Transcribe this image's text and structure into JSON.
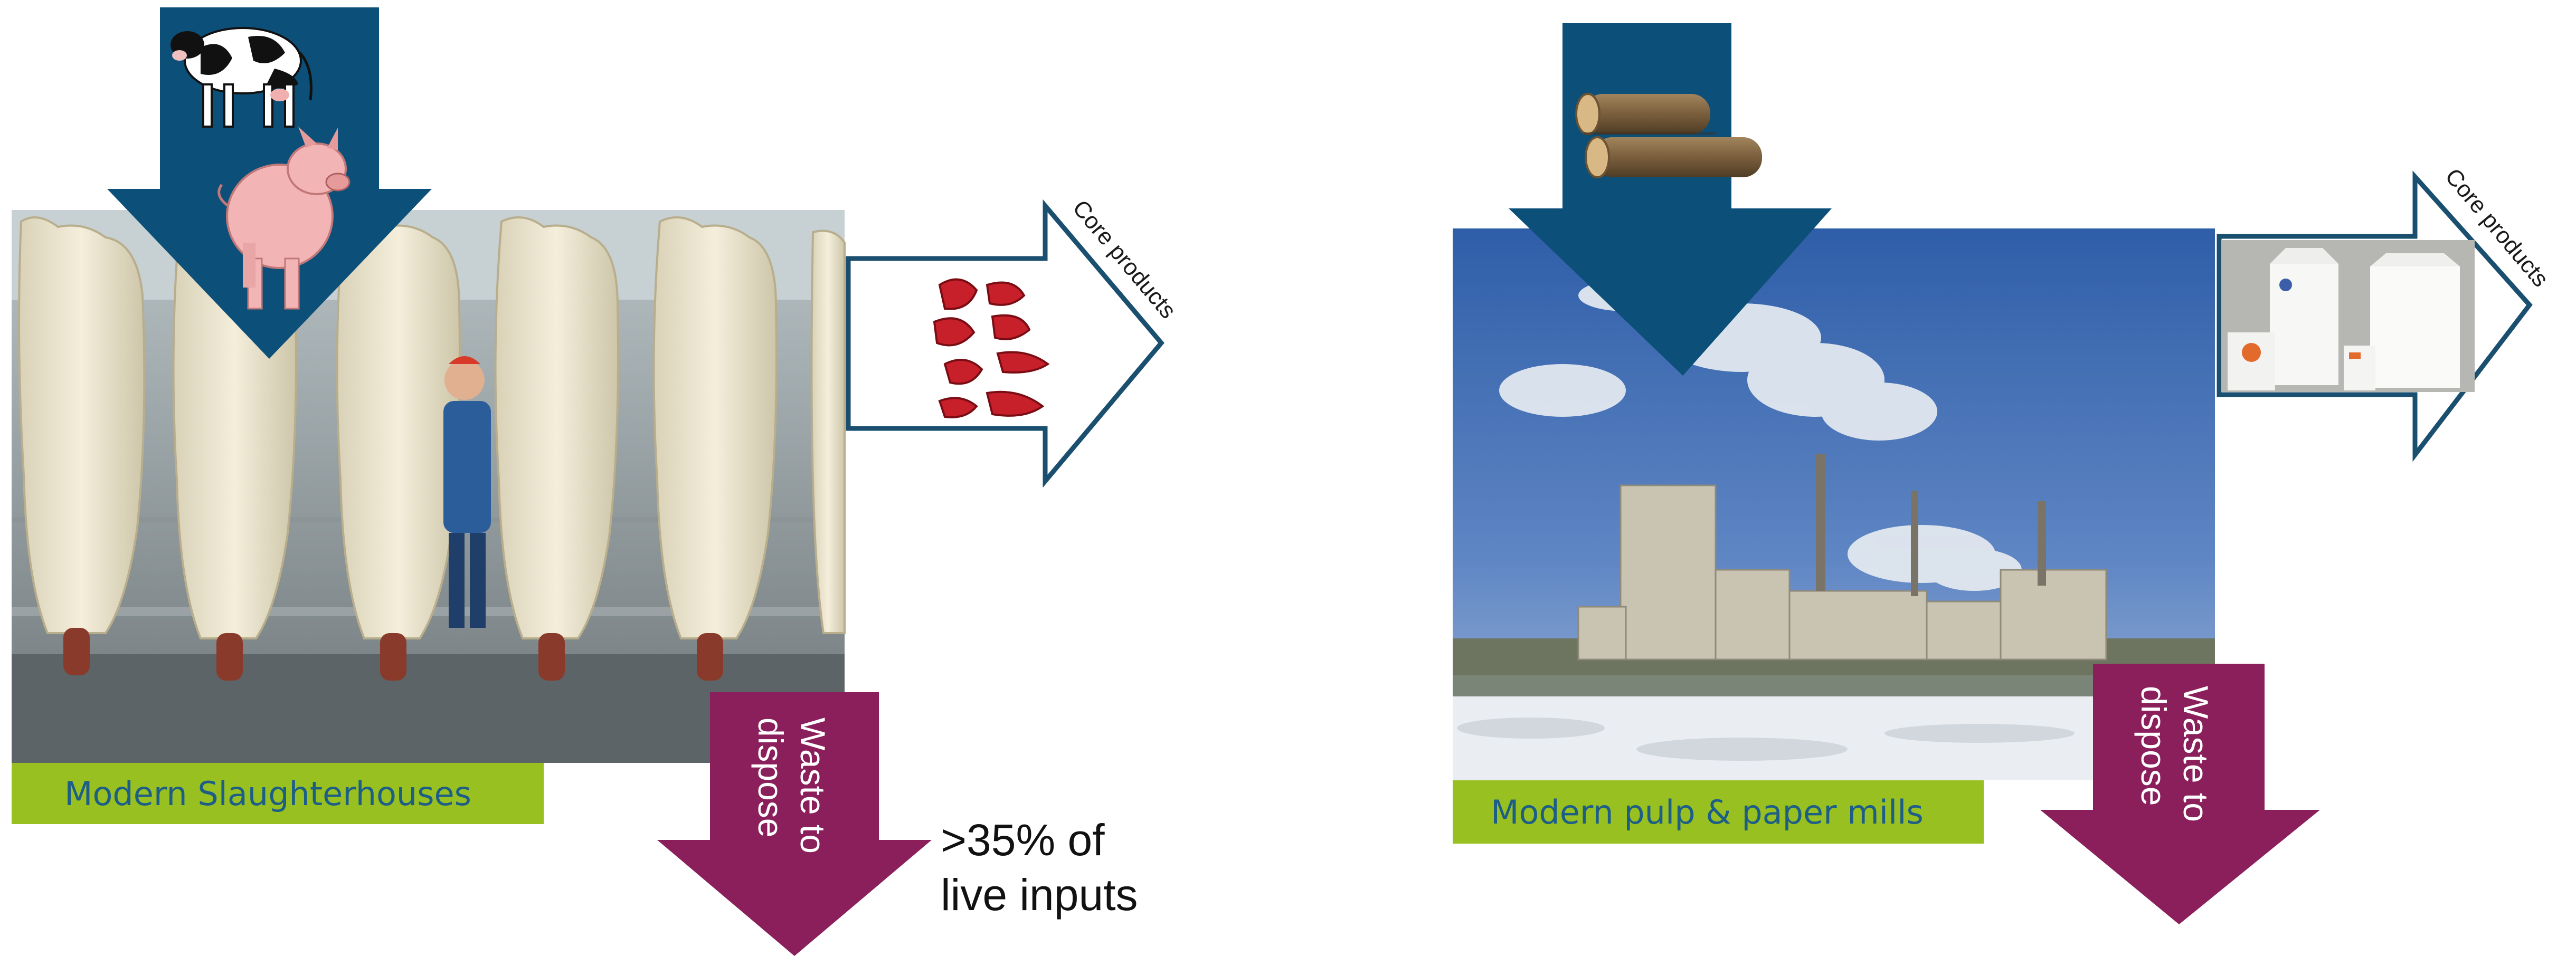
{
  "panels": {
    "slaughterhouse": {
      "label": "Modern Slaughterhouses",
      "core_products": "Core products",
      "waste": "Waste to\ndispose",
      "waste_note": ">35% of\nlive inputs"
    },
    "pulp_mill": {
      "label": "Modern pulp & paper mills",
      "core_products": "Core products",
      "waste": "Waste to\ndispose"
    }
  },
  "colors": {
    "input_arrow": "#0c4f78",
    "waste_arrow": "#8a1f5c",
    "label_bg": "#99c021",
    "label_text": "#1d5e86",
    "outline_arrow": "#1a4f70"
  },
  "icons": [
    "cow-icon",
    "pig-icon",
    "meat-cuts-icon",
    "logs-icon",
    "milk-cartons-icon"
  ]
}
